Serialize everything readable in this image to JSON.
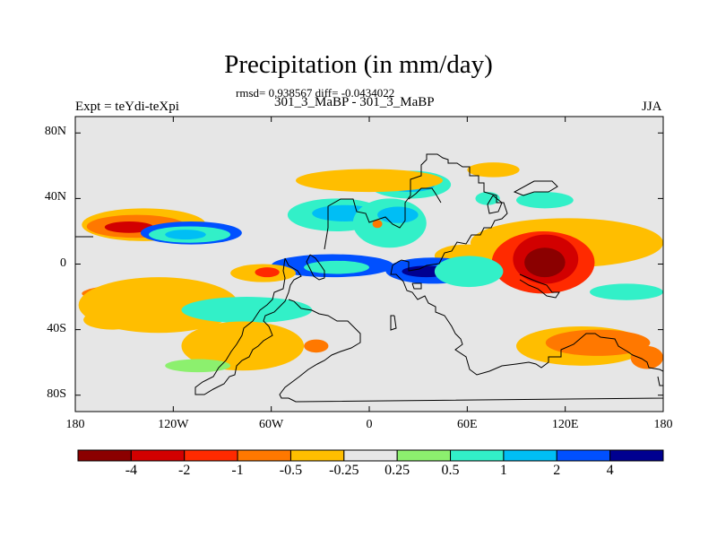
{
  "title": "Precipitation (in mm/day)",
  "subtitle": "rmsd= 0.938567 diff= -0.0434022",
  "left_label": "Expt = teYdi-teXpi",
  "center_label": "301_3_MaBP - 301_3_MaBP",
  "right_label": "JJA",
  "map": {
    "lon_range": [
      -180,
      180
    ],
    "lat_range": [
      -90,
      90
    ],
    "background_color": "#e6e6e6",
    "y_ticks": [
      {
        "value": 80,
        "label": "80N"
      },
      {
        "value": 40,
        "label": "40N"
      },
      {
        "value": 0,
        "label": "0"
      },
      {
        "value": -40,
        "label": "40S"
      },
      {
        "value": -80,
        "label": "80S"
      }
    ],
    "x_ticks": [
      {
        "value": -180,
        "label": "180"
      },
      {
        "value": -120,
        "label": "120W"
      },
      {
        "value": -60,
        "label": "60W"
      },
      {
        "value": 0,
        "label": "0"
      },
      {
        "value": 60,
        "label": "60E"
      },
      {
        "value": 120,
        "label": "120E"
      },
      {
        "value": 180,
        "label": "180"
      }
    ]
  },
  "colorbar": {
    "colors": [
      "#8b0000",
      "#d20000",
      "#ff2a00",
      "#ff7800",
      "#ffbe00",
      "#e6e6e6",
      "#8cf06e",
      "#32f0c8",
      "#00bef5",
      "#0050ff",
      "#000090"
    ],
    "labels": [
      "-4",
      "-2",
      "-1",
      "-0.5",
      "-0.25",
      "0.25",
      "0.5",
      "1",
      "2",
      "4"
    ]
  },
  "chart_data": {
    "type": "heatmap",
    "title": "Precipitation (in mm/day)",
    "subtitle": "rmsd= 0.938567 diff= -0.0434022",
    "levels": [
      -4,
      -2,
      -1,
      -0.5,
      -0.25,
      0.25,
      0.5,
      1,
      2,
      4
    ],
    "regions": [
      {
        "category": 4,
        "lon": [
          -176,
          -100
        ],
        "lat": [
          14,
          34
        ]
      },
      {
        "category": 3,
        "lon": [
          -173,
          -112
        ],
        "lat": [
          16,
          30
        ]
      },
      {
        "category": 1,
        "lon": [
          -162,
          -132
        ],
        "lat": [
          19,
          26
        ]
      },
      {
        "category": 9,
        "lon": [
          -140,
          -78
        ],
        "lat": [
          12,
          26
        ]
      },
      {
        "category": 7,
        "lon": [
          -135,
          -85
        ],
        "lat": [
          13,
          23
        ]
      },
      {
        "category": 8,
        "lon": [
          -125,
          -100
        ],
        "lat": [
          15,
          21
        ]
      },
      {
        "category": 7,
        "lon": [
          -50,
          10
        ],
        "lat": [
          20,
          40
        ]
      },
      {
        "category": 8,
        "lon": [
          -35,
          5
        ],
        "lat": [
          26,
          36
        ]
      },
      {
        "category": 9,
        "lon": [
          -60,
          15
        ],
        "lat": [
          -8,
          6
        ]
      },
      {
        "category": 7,
        "lon": [
          -40,
          0
        ],
        "lat": [
          -6,
          2
        ]
      },
      {
        "category": 4,
        "lon": [
          -85,
          -45
        ],
        "lat": [
          -11,
          0
        ]
      },
      {
        "category": 2,
        "lon": [
          -70,
          -55
        ],
        "lat": [
          -8,
          -2
        ]
      },
      {
        "category": 7,
        "lon": [
          -10,
          35
        ],
        "lat": [
          10,
          40
        ]
      },
      {
        "category": 8,
        "lon": [
          5,
          30
        ],
        "lat": [
          25,
          35
        ]
      },
      {
        "category": 3,
        "lon": [
          2,
          8
        ],
        "lat": [
          22,
          27
        ]
      },
      {
        "category": 7,
        "lon": [
          0,
          50
        ],
        "lat": [
          40,
          57
        ]
      },
      {
        "category": 8,
        "lon": [
          10,
          40
        ],
        "lat": [
          44,
          52
        ]
      },
      {
        "category": 7,
        "lon": [
          65,
          80
        ],
        "lat": [
          36,
          44
        ]
      },
      {
        "category": 7,
        "lon": [
          90,
          125
        ],
        "lat": [
          34,
          44
        ]
      },
      {
        "category": 4,
        "lon": [
          -45,
          45
        ],
        "lat": [
          44,
          58
        ]
      },
      {
        "category": 4,
        "lon": [
          60,
          92
        ],
        "lat": [
          53,
          62
        ]
      },
      {
        "category": 4,
        "lon": [
          40,
          80
        ],
        "lat": [
          -2,
          12
        ]
      },
      {
        "category": 4,
        "lon": [
          62,
          180
        ],
        "lat": [
          -2,
          28
        ]
      },
      {
        "category": 2,
        "lon": [
          75,
          138
        ],
        "lat": [
          -18,
          20
        ]
      },
      {
        "category": 1,
        "lon": [
          88,
          128
        ],
        "lat": [
          -12,
          18
        ]
      },
      {
        "category": 0,
        "lon": [
          95,
          120
        ],
        "lat": [
          -8,
          10
        ]
      },
      {
        "category": 9,
        "lon": [
          10,
          68
        ],
        "lat": [
          -12,
          4
        ]
      },
      {
        "category": 10,
        "lon": [
          20,
          50
        ],
        "lat": [
          -8,
          -1
        ]
      },
      {
        "category": 7,
        "lon": [
          40,
          82
        ],
        "lat": [
          -14,
          5
        ]
      },
      {
        "category": 3,
        "lon": [
          -176,
          -92
        ],
        "lat": [
          -24,
          -12
        ]
      },
      {
        "category": 2,
        "lon": [
          -168,
          -118
        ],
        "lat": [
          -21,
          -14
        ]
      },
      {
        "category": 4,
        "lon": [
          -178,
          -80
        ],
        "lat": [
          -42,
          -8
        ]
      },
      {
        "category": 7,
        "lon": [
          -115,
          -35
        ],
        "lat": [
          -36,
          -20
        ]
      },
      {
        "category": 3,
        "lon": [
          -105,
          -75
        ],
        "lat": [
          -58,
          -40
        ]
      },
      {
        "category": 4,
        "lon": [
          -115,
          -40
        ],
        "lat": [
          -65,
          -35
        ]
      },
      {
        "category": 3,
        "lon": [
          -40,
          -25
        ],
        "lat": [
          -54,
          -46
        ]
      },
      {
        "category": 6,
        "lon": [
          -125,
          -85
        ],
        "lat": [
          -66,
          -58
        ]
      },
      {
        "category": 4,
        "lon": [
          90,
          170
        ],
        "lat": [
          -62,
          -38
        ]
      },
      {
        "category": 3,
        "lon": [
          108,
          172
        ],
        "lat": [
          -56,
          -40
        ]
      },
      {
        "category": 3,
        "lon": [
          160,
          180
        ],
        "lat": [
          -64,
          -50
        ]
      },
      {
        "category": 4,
        "lon": [
          -175,
          -140
        ],
        "lat": [
          -40,
          -28
        ]
      },
      {
        "category": 7,
        "lon": [
          135,
          180
        ],
        "lat": [
          -22,
          -12
        ]
      }
    ]
  }
}
